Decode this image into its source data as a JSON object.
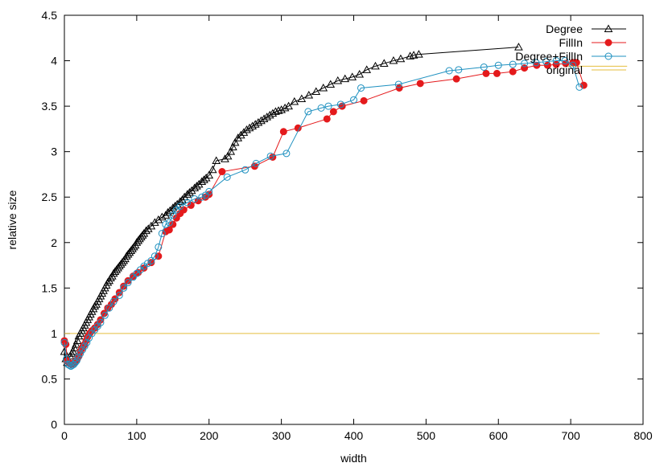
{
  "chart_data": {
    "type": "line",
    "xlabel": "width",
    "ylabel": "relative size",
    "xlim": [
      0,
      800
    ],
    "ylim": [
      0,
      4.5
    ],
    "xticks": [
      0,
      100,
      200,
      300,
      400,
      500,
      600,
      700,
      800
    ],
    "yticks": [
      0,
      0.5,
      1,
      1.5,
      2,
      2.5,
      3,
      3.5,
      4,
      4.5
    ],
    "grid": false,
    "legend_position": "top-right",
    "series": [
      {
        "name": "Degree",
        "color": "#000000",
        "marker": "triangle",
        "x": [
          0,
          2,
          4,
          6,
          8,
          10,
          12,
          14,
          16,
          18,
          20,
          22,
          24,
          26,
          28,
          30,
          32,
          34,
          36,
          38,
          40,
          42,
          44,
          46,
          48,
          50,
          52,
          54,
          56,
          58,
          60,
          62,
          64,
          66,
          68,
          70,
          72,
          74,
          76,
          78,
          80,
          82,
          84,
          86,
          88,
          90,
          92,
          94,
          96,
          98,
          100,
          102,
          104,
          106,
          108,
          110,
          113,
          116,
          120,
          125,
          130,
          135,
          140,
          143,
          146,
          150,
          153,
          156,
          160,
          163,
          166,
          170,
          173,
          176,
          180,
          183,
          186,
          190,
          193,
          196,
          200,
          205,
          210,
          222,
          226,
          230,
          233,
          236,
          240,
          244,
          248,
          252,
          256,
          260,
          264,
          268,
          272,
          276,
          280,
          284,
          288,
          292,
          296,
          300,
          305,
          310,
          318,
          328,
          338,
          348,
          358,
          368,
          378,
          388,
          398,
          408,
          418,
          430,
          442,
          455,
          465,
          478,
          483,
          490,
          628
        ],
        "y": [
          0.8,
          0.72,
          0.68,
          0.7,
          0.75,
          0.78,
          0.8,
          0.84,
          0.88,
          0.92,
          0.97,
          1.0,
          1.03,
          1.06,
          1.09,
          1.12,
          1.15,
          1.18,
          1.21,
          1.24,
          1.27,
          1.3,
          1.32,
          1.35,
          1.38,
          1.41,
          1.44,
          1.47,
          1.5,
          1.53,
          1.56,
          1.58,
          1.61,
          1.63,
          1.66,
          1.68,
          1.7,
          1.72,
          1.74,
          1.76,
          1.78,
          1.8,
          1.82,
          1.85,
          1.87,
          1.89,
          1.91,
          1.93,
          1.95,
          1.97,
          2.0,
          2.02,
          2.04,
          2.06,
          2.08,
          2.1,
          2.13,
          2.15,
          2.18,
          2.22,
          2.25,
          2.28,
          2.3,
          2.33,
          2.35,
          2.38,
          2.4,
          2.42,
          2.45,
          2.47,
          2.5,
          2.53,
          2.55,
          2.57,
          2.6,
          2.62,
          2.64,
          2.67,
          2.69,
          2.71,
          2.74,
          2.8,
          2.9,
          2.92,
          2.95,
          3.0,
          3.05,
          3.1,
          3.15,
          3.18,
          3.21,
          3.24,
          3.26,
          3.28,
          3.3,
          3.32,
          3.34,
          3.36,
          3.38,
          3.4,
          3.42,
          3.44,
          3.45,
          3.46,
          3.48,
          3.5,
          3.55,
          3.58,
          3.62,
          3.66,
          3.7,
          3.74,
          3.78,
          3.8,
          3.82,
          3.85,
          3.9,
          3.94,
          3.97,
          4.0,
          4.02,
          4.05,
          4.06,
          4.07,
          4.15
        ]
      },
      {
        "name": "FillIn",
        "color": "#e41a1c",
        "marker": "filled-circle",
        "x": [
          0,
          2,
          4,
          6,
          8,
          10,
          12,
          14,
          16,
          18,
          20,
          22,
          24,
          26,
          28,
          30,
          32,
          35,
          38,
          42,
          46,
          50,
          55,
          60,
          65,
          70,
          76,
          82,
          88,
          95,
          102,
          110,
          120,
          130,
          140,
          145,
          150,
          155,
          160,
          165,
          175,
          185,
          195,
          200,
          218,
          263,
          288,
          303,
          323,
          363,
          372,
          384,
          414,
          463,
          492,
          542,
          583,
          598,
          620,
          636,
          653,
          668,
          680,
          693,
          703,
          708,
          718
        ],
        "y": [
          0.92,
          0.88,
          0.7,
          0.68,
          0.67,
          0.66,
          0.67,
          0.68,
          0.7,
          0.72,
          0.75,
          0.8,
          0.83,
          0.86,
          0.88,
          0.92,
          0.96,
          1.0,
          1.03,
          1.06,
          1.1,
          1.15,
          1.22,
          1.28,
          1.32,
          1.38,
          1.45,
          1.52,
          1.58,
          1.63,
          1.67,
          1.72,
          1.78,
          1.85,
          2.12,
          2.14,
          2.2,
          2.27,
          2.32,
          2.36,
          2.41,
          2.46,
          2.5,
          2.53,
          2.78,
          2.84,
          2.94,
          3.22,
          3.26,
          3.36,
          3.44,
          3.5,
          3.56,
          3.7,
          3.75,
          3.8,
          3.86,
          3.86,
          3.88,
          3.92,
          3.95,
          3.95,
          3.96,
          3.97,
          3.98,
          3.98,
          3.73
        ]
      },
      {
        "name": "Degree+FillIn",
        "color": "#1f91c0",
        "marker": "open-circle",
        "x": [
          0,
          3,
          5,
          7,
          9,
          11,
          13,
          15,
          17,
          19,
          22,
          25,
          28,
          31,
          34,
          38,
          42,
          46,
          50,
          56,
          62,
          68,
          76,
          82,
          88,
          95,
          100,
          105,
          110,
          115,
          120,
          125,
          130,
          135,
          140,
          145,
          150,
          155,
          160,
          170,
          180,
          190,
          195,
          200,
          225,
          250,
          265,
          285,
          307,
          337,
          355,
          365,
          382,
          400,
          410,
          462,
          532,
          545,
          580,
          600,
          620,
          636,
          652,
          666,
          680,
          692,
          703,
          712
        ],
        "y": [
          0.9,
          0.72,
          0.66,
          0.65,
          0.64,
          0.65,
          0.66,
          0.68,
          0.7,
          0.74,
          0.78,
          0.82,
          0.86,
          0.9,
          0.95,
          1.0,
          1.04,
          1.08,
          1.12,
          1.2,
          1.28,
          1.35,
          1.42,
          1.5,
          1.56,
          1.62,
          1.66,
          1.7,
          1.74,
          1.77,
          1.8,
          1.85,
          1.95,
          2.1,
          2.2,
          2.22,
          2.3,
          2.36,
          2.4,
          2.44,
          2.48,
          2.5,
          2.52,
          2.56,
          2.72,
          2.8,
          2.87,
          2.95,
          2.98,
          3.44,
          3.48,
          3.5,
          3.52,
          3.57,
          3.7,
          3.74,
          3.89,
          3.9,
          3.93,
          3.95,
          3.96,
          3.97,
          3.98,
          3.99,
          4.0,
          4.0,
          3.95,
          3.71
        ]
      },
      {
        "name": "original",
        "color": "#e5be3e",
        "marker": "none",
        "segments": [
          {
            "x": [
              0,
              740
            ],
            "y": [
              1,
              1
            ]
          },
          {
            "x": [
              690,
              778
            ],
            "y": [
              3.94,
              3.94
            ]
          }
        ]
      }
    ]
  }
}
